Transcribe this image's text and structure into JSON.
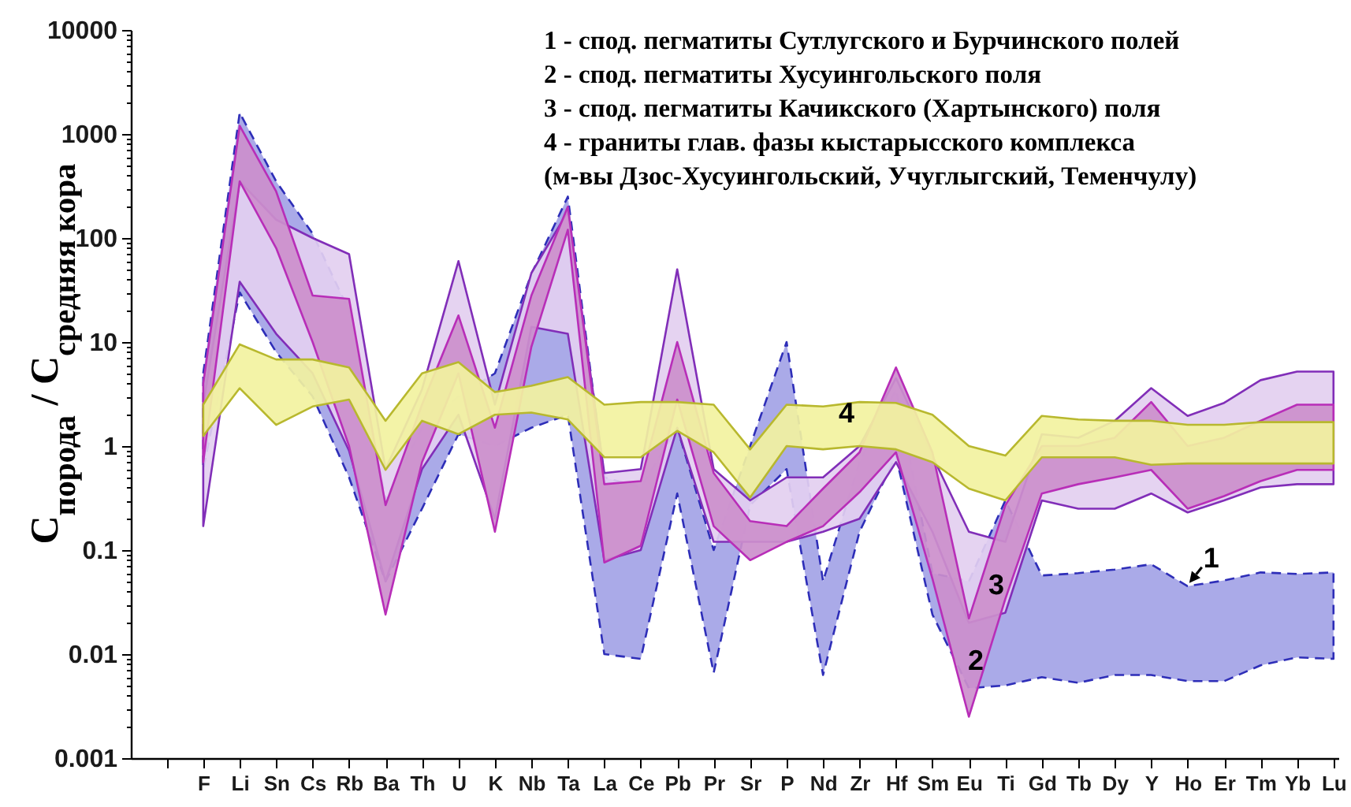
{
  "chart_data": {
    "type": "area",
    "ylabel": "C$_{порода}$ / C$_{средняя кора}$",
    "log": true,
    "ylim": [
      0.001,
      10000
    ],
    "yticks": [
      0.001,
      {
        "value": 0.002,
        "label": null
      },
      {
        "value": 0.003,
        "label": null
      },
      {
        "value": 0.004,
        "label": null
      },
      {
        "value": 0.005,
        "label": null
      },
      {
        "value": 0.006,
        "label": null
      },
      {
        "value": 0.007,
        "label": null
      },
      {
        "value": 0.008,
        "label": null
      },
      {
        "value": 0.009,
        "label": null
      },
      0.01,
      {
        "value": 0.02,
        "label": null
      },
      {
        "value": 0.03,
        "label": null
      },
      {
        "value": 0.04,
        "label": null
      },
      {
        "value": 0.05,
        "label": null
      },
      {
        "value": 0.06,
        "label": null
      },
      {
        "value": 0.07,
        "label": null
      },
      {
        "value": 0.08,
        "label": null
      },
      {
        "value": 0.09,
        "label": null
      },
      0.1,
      {
        "value": 0.2,
        "label": null
      },
      {
        "value": 0.3,
        "label": null
      },
      {
        "value": 0.4,
        "label": null
      },
      {
        "value": 0.5,
        "label": null
      },
      {
        "value": 0.6,
        "label": null
      },
      {
        "value": 0.7,
        "label": null
      },
      {
        "value": 0.8,
        "label": null
      },
      {
        "value": 0.9,
        "label": null
      },
      1,
      {
        "value": 2,
        "label": null
      },
      {
        "value": 3,
        "label": null
      },
      {
        "value": 4,
        "label": null
      },
      {
        "value": 5,
        "label": null
      },
      {
        "value": 6,
        "label": null
      },
      {
        "value": 7,
        "label": null
      },
      {
        "value": 8,
        "label": null
      },
      {
        "value": 9,
        "label": null
      },
      10,
      {
        "value": 20,
        "label": null
      },
      {
        "value": 30,
        "label": null
      },
      {
        "value": 40,
        "label": null
      },
      {
        "value": 50,
        "label": null
      },
      {
        "value": 60,
        "label": null
      },
      {
        "value": 70,
        "label": null
      },
      {
        "value": 80,
        "label": null
      },
      {
        "value": 90,
        "label": null
      },
      100,
      {
        "value": 200,
        "label": null
      },
      {
        "value": 300,
        "label": null
      },
      {
        "value": 400,
        "label": null
      },
      {
        "value": 500,
        "label": null
      },
      {
        "value": 600,
        "label": null
      },
      {
        "value": 700,
        "label": null
      },
      {
        "value": 800,
        "label": null
      },
      {
        "value": 900,
        "label": null
      },
      1000,
      {
        "value": 2000,
        "label": null
      },
      {
        "value": 3000,
        "label": null
      },
      {
        "value": 4000,
        "label": null
      },
      {
        "value": 5000,
        "label": null
      },
      {
        "value": 6000,
        "label": null
      },
      {
        "value": 7000,
        "label": null
      },
      {
        "value": 8000,
        "label": null
      },
      {
        "value": 9000,
        "label": null
      },
      10000
    ],
    "categories": [
      null,
      "F",
      "Li",
      "Sn",
      "Cs",
      "Rb",
      "Ba",
      "Th",
      "U",
      "K",
      "Nb",
      "Ta",
      "La",
      "Ce",
      "Pb",
      "Pr",
      "Sr",
      "P",
      "Nd",
      "Zr",
      "Hf",
      "Sm",
      "Eu",
      "Ti",
      "Gd",
      "Tb",
      "Dy",
      "Y",
      "Ho",
      "Er",
      "Tm",
      "Yb",
      "Lu"
    ],
    "series": [
      {
        "color": "#a3a3e6",
        "line_style": "dashed",
        "values": [
          null,
          null,
          null,
          null,
          null,
          null,
          null,
          null,
          null,
          null,
          null,
          null,
          null,
          null,
          null,
          null,
          null,
          null,
          null,
          null,
          null,
          null,
          null,
          null,
          null,
          null,
          null,
          null,
          null,
          null,
          null,
          null,
          null
        ],
        "upper": [
          null,
          5,
          1600,
          350,
          110,
          20,
          0.3,
          1.5,
          3,
          5,
          45,
          250,
          0.5,
          0.4,
          1.5,
          0.1,
          1.0,
          10,
          0.05,
          0.7,
          3.5,
          0.06,
          0.05,
          0.3,
          0.057,
          0.06,
          0.065,
          0.073,
          0.045,
          0.051,
          0.061,
          0.059,
          0.061
        ],
        "lower": [
          null,
          0.6,
          30,
          8,
          3,
          0.5,
          0.05,
          0.25,
          1.3,
          1.0,
          1.5,
          2,
          0.01,
          0.009,
          0.35,
          0.0066,
          0.27,
          0.6,
          0.0063,
          0.15,
          0.8,
          0.024,
          0.0047,
          0.005,
          0.006,
          0.0053,
          0.0063,
          0.0063,
          0.0055,
          0.0055,
          0.0078,
          0.0093,
          0.009
        ]
      },
      {
        "color": "#e3cff0",
        "values": [
          null,
          null,
          null,
          null,
          null,
          null,
          null,
          null,
          null,
          null,
          null,
          null,
          null,
          null,
          null,
          null,
          null,
          null,
          null,
          null,
          null,
          null,
          null,
          null,
          null,
          null,
          null,
          null,
          null,
          null,
          null,
          null,
          null
        ],
        "upper": [
          null,
          2.5,
          350,
          150,
          100,
          70,
          0.6,
          3.5,
          60,
          2.5,
          46,
          180,
          0.55,
          0.6,
          50,
          0.6,
          0.3,
          0.5,
          0.5,
          1.0,
          4.5,
          0.8,
          0.15,
          0.12,
          1.3,
          1.2,
          1.75,
          3.6,
          1.95,
          2.6,
          4.3,
          5.2,
          5.2
        ],
        "lower": [
          null,
          0.17,
          38,
          12,
          5,
          0.9,
          0.05,
          0.6,
          2,
          0.2,
          14,
          12,
          0.08,
          0.1,
          1.5,
          0.12,
          0.12,
          0.12,
          0.15,
          0.2,
          0.7,
          0.15,
          0.02,
          0.025,
          0.3,
          0.25,
          0.25,
          0.35,
          0.23,
          0.3,
          0.4,
          0.43,
          0.43
        ]
      },
      {
        "color": "#cc8fcc",
        "values": [
          null,
          null,
          null,
          null,
          null,
          null,
          null,
          null,
          null,
          null,
          null,
          null,
          null,
          null,
          null,
          null,
          null,
          null,
          null,
          null,
          null,
          null,
          null,
          null,
          null,
          null,
          null,
          null,
          null,
          null,
          null,
          null,
          null
        ],
        "upper": [
          null,
          4,
          1200,
          280,
          28,
          26,
          0.27,
          2.5,
          18,
          1.5,
          28,
          200,
          0.43,
          0.46,
          10,
          0.55,
          0.19,
          0.17,
          0.39,
          0.87,
          5.7,
          0.87,
          0.022,
          0.27,
          1.0,
          1.0,
          1.2,
          2.65,
          1.0,
          1.2,
          1.75,
          2.5,
          2.5
        ],
        "lower": [
          null,
          0.7,
          350,
          80,
          10,
          1.0,
          0.024,
          0.7,
          5,
          0.15,
          9,
          120,
          0.076,
          0.11,
          2.8,
          0.17,
          0.08,
          0.12,
          0.17,
          0.36,
          0.87,
          0.053,
          0.0025,
          0.034,
          0.35,
          0.43,
          0.5,
          0.59,
          0.25,
          0.33,
          0.46,
          0.59,
          0.59
        ]
      },
      {
        "color": "#f2f2a0",
        "values": [
          null,
          null,
          null,
          null,
          null,
          null,
          null,
          null,
          null,
          null,
          null,
          null,
          null,
          null,
          null,
          null,
          null,
          null,
          null,
          null,
          null,
          null,
          null,
          null,
          null,
          null,
          null,
          null,
          null,
          null,
          null,
          null,
          null
        ],
        "upper": [
          null,
          2.5,
          9.5,
          6.8,
          6.8,
          5.7,
          1.75,
          5,
          6.4,
          3.3,
          3.8,
          4.6,
          2.5,
          2.65,
          2.65,
          2.5,
          0.93,
          2.5,
          2.4,
          2.65,
          2.6,
          2.0,
          1.0,
          0.81,
          1.95,
          1.8,
          1.75,
          1.75,
          1.6,
          1.6,
          1.7,
          1.7,
          1.7
        ],
        "lower": [
          null,
          1.25,
          3.6,
          1.6,
          2.4,
          2.8,
          0.59,
          1.75,
          1.3,
          2.0,
          2.1,
          1.8,
          0.78,
          0.78,
          1.4,
          0.87,
          0.32,
          1.0,
          0.93,
          1.0,
          0.93,
          0.7,
          0.39,
          0.3,
          0.78,
          0.78,
          0.78,
          0.66,
          0.68,
          0.68,
          0.68,
          0.68,
          0.68
        ]
      }
    ],
    "annotations": [
      "1 - спод. пегматиты Сутлугского и Бурчинского полей",
      "2 - спод. пегматиты Хусуингольского поля",
      "3 - спод. пегматиты Качикского (Хартынского) поля",
      "4 - граниты глав. фазы кыстарысского комплекса",
      "(м-вы Дзос-Хусуингольский, Учуглыгский, Теменчулу)",
      "4",
      {
        "text": "1",
        "x": "Ho",
        "y": 0.045
      },
      "3",
      "2"
    ]
  }
}
